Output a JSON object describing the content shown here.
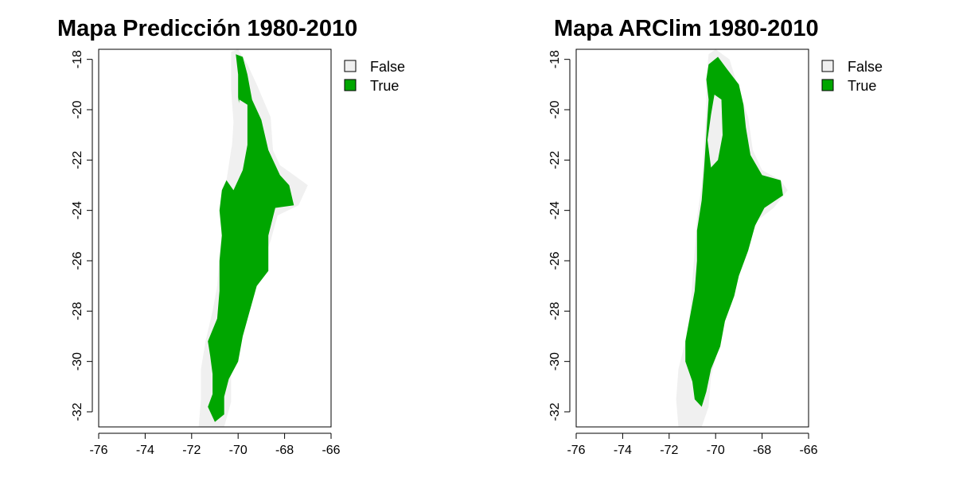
{
  "colors": {
    "false_fill": "#F0F0F0",
    "true_fill": "#00A600",
    "frame": "#000000",
    "background": "#FFFFFF"
  },
  "chart_data": [
    {
      "type": "map",
      "title": "Mapa Predicción 1980-2010",
      "xlim": [
        -76,
        -66
      ],
      "ylim": [
        -32.6,
        -17.6
      ],
      "x_ticks": [
        -76,
        -74,
        -72,
        -70,
        -68,
        -66
      ],
      "y_ticks": [
        -18,
        -20,
        -22,
        -24,
        -26,
        -28,
        -30,
        -32
      ],
      "grid": false,
      "legend_position": "right",
      "legend": [
        {
          "label": "False",
          "color": "#F0F0F0"
        },
        {
          "label": "True",
          "color": "#00A600"
        }
      ],
      "false_region": [
        [
          -70.3,
          -17.7
        ],
        [
          -70.0,
          -17.6
        ],
        [
          -69.6,
          -18.2
        ],
        [
          -69.2,
          -19.0
        ],
        [
          -68.6,
          -20.3
        ],
        [
          -68.5,
          -21.6
        ],
        [
          -68.2,
          -22.2
        ],
        [
          -67.6,
          -22.6
        ],
        [
          -67.0,
          -23.0
        ],
        [
          -67.4,
          -23.8
        ],
        [
          -68.3,
          -24.2
        ],
        [
          -68.6,
          -25.2
        ],
        [
          -69.0,
          -26.2
        ],
        [
          -69.2,
          -27.0
        ],
        [
          -69.6,
          -28.2
        ],
        [
          -69.9,
          -29.3
        ],
        [
          -70.3,
          -30.5
        ],
        [
          -70.3,
          -31.6
        ],
        [
          -70.6,
          -32.6
        ],
        [
          -71.7,
          -32.6
        ],
        [
          -71.6,
          -31.5
        ],
        [
          -71.6,
          -30.3
        ],
        [
          -71.4,
          -29.2
        ],
        [
          -71.1,
          -28.0
        ],
        [
          -70.9,
          -27.0
        ],
        [
          -70.8,
          -25.8
        ],
        [
          -70.7,
          -24.5
        ],
        [
          -70.6,
          -23.3
        ],
        [
          -70.3,
          -22.0
        ],
        [
          -70.2,
          -20.5
        ],
        [
          -70.3,
          -19.2
        ],
        [
          -70.3,
          -18.4
        ]
      ],
      "true_region": [
        [
          -70.1,
          -17.8
        ],
        [
          -69.8,
          -17.9
        ],
        [
          -69.6,
          -18.6
        ],
        [
          -69.4,
          -19.6
        ],
        [
          -69.0,
          -20.4
        ],
        [
          -68.7,
          -21.6
        ],
        [
          -68.2,
          -22.6
        ],
        [
          -67.8,
          -23.0
        ],
        [
          -67.6,
          -23.8
        ],
        [
          -68.4,
          -23.9
        ],
        [
          -68.7,
          -25.0
        ],
        [
          -68.7,
          -26.4
        ],
        [
          -69.2,
          -27.0
        ],
        [
          -69.5,
          -28.0
        ],
        [
          -69.8,
          -29.0
        ],
        [
          -70.0,
          -30.0
        ],
        [
          -70.4,
          -30.7
        ],
        [
          -70.6,
          -31.4
        ],
        [
          -70.6,
          -32.1
        ],
        [
          -71.0,
          -32.4
        ],
        [
          -71.3,
          -31.8
        ],
        [
          -71.1,
          -31.3
        ],
        [
          -71.1,
          -30.5
        ],
        [
          -71.2,
          -29.8
        ],
        [
          -71.3,
          -29.2
        ],
        [
          -70.9,
          -28.3
        ],
        [
          -70.8,
          -27.2
        ],
        [
          -70.8,
          -26.0
        ],
        [
          -70.7,
          -25.0
        ],
        [
          -70.8,
          -24.0
        ],
        [
          -70.7,
          -23.2
        ],
        [
          -70.3,
          -22.4
        ],
        [
          -69.9,
          -21.8
        ],
        [
          -69.8,
          -20.8
        ],
        [
          -70.0,
          -19.5
        ],
        [
          -70.0,
          -18.6
        ]
      ],
      "false_overlay": [
        [
          -69.95,
          -19.6
        ],
        [
          -69.6,
          -19.8
        ],
        [
          -69.6,
          -21.4
        ],
        [
          -69.8,
          -22.4
        ],
        [
          -70.2,
          -23.2
        ],
        [
          -70.5,
          -22.8
        ],
        [
          -70.3,
          -21.6
        ],
        [
          -70.1,
          -20.6
        ]
      ]
    },
    {
      "type": "map",
      "title": "Mapa ARClim 1980-2010",
      "xlim": [
        -76,
        -66
      ],
      "ylim": [
        -32.6,
        -17.6
      ],
      "x_ticks": [
        -76,
        -74,
        -72,
        -70,
        -68,
        -66
      ],
      "y_ticks": [
        -18,
        -20,
        -22,
        -24,
        -26,
        -28,
        -30,
        -32
      ],
      "grid": false,
      "legend_position": "right",
      "legend": [
        {
          "label": "False",
          "color": "#F0F0F0"
        },
        {
          "label": "True",
          "color": "#00A600"
        }
      ],
      "false_region": [
        [
          -70.3,
          -17.8
        ],
        [
          -70.0,
          -17.6
        ],
        [
          -69.4,
          -18.0
        ],
        [
          -69.0,
          -19.2
        ],
        [
          -68.6,
          -20.3
        ],
        [
          -68.4,
          -21.6
        ],
        [
          -68.0,
          -22.4
        ],
        [
          -67.2,
          -22.8
        ],
        [
          -66.9,
          -23.2
        ],
        [
          -67.5,
          -23.9
        ],
        [
          -68.2,
          -24.4
        ],
        [
          -68.6,
          -25.4
        ],
        [
          -69.0,
          -26.4
        ],
        [
          -69.2,
          -27.2
        ],
        [
          -69.6,
          -28.4
        ],
        [
          -69.9,
          -29.5
        ],
        [
          -70.2,
          -30.6
        ],
        [
          -70.3,
          -31.8
        ],
        [
          -70.6,
          -32.6
        ],
        [
          -71.6,
          -32.6
        ],
        [
          -71.7,
          -31.5
        ],
        [
          -71.6,
          -30.3
        ],
        [
          -71.3,
          -29.2
        ],
        [
          -71.1,
          -28.0
        ],
        [
          -71.0,
          -26.8
        ],
        [
          -70.9,
          -25.6
        ],
        [
          -70.8,
          -24.3
        ],
        [
          -70.6,
          -23.0
        ],
        [
          -70.5,
          -21.5
        ],
        [
          -70.4,
          -20.0
        ],
        [
          -70.4,
          -18.8
        ]
      ],
      "true_region": [
        [
          -70.3,
          -18.2
        ],
        [
          -69.9,
          -17.9
        ],
        [
          -69.5,
          -18.4
        ],
        [
          -69.0,
          -19.0
        ],
        [
          -68.8,
          -19.8
        ],
        [
          -68.7,
          -20.7
        ],
        [
          -68.5,
          -21.8
        ],
        [
          -68.0,
          -22.6
        ],
        [
          -67.2,
          -22.8
        ],
        [
          -67.1,
          -23.4
        ],
        [
          -67.9,
          -23.9
        ],
        [
          -68.3,
          -24.6
        ],
        [
          -68.6,
          -25.6
        ],
        [
          -69.0,
          -26.6
        ],
        [
          -69.2,
          -27.4
        ],
        [
          -69.6,
          -28.4
        ],
        [
          -69.8,
          -29.4
        ],
        [
          -70.2,
          -30.3
        ],
        [
          -70.4,
          -31.2
        ],
        [
          -70.6,
          -31.8
        ],
        [
          -70.9,
          -31.5
        ],
        [
          -71.0,
          -30.8
        ],
        [
          -71.3,
          -30.0
        ],
        [
          -71.3,
          -29.2
        ],
        [
          -71.1,
          -28.2
        ],
        [
          -70.9,
          -27.2
        ],
        [
          -70.8,
          -26.0
        ],
        [
          -70.8,
          -24.8
        ],
        [
          -70.6,
          -23.6
        ],
        [
          -70.5,
          -22.4
        ],
        [
          -70.4,
          -21.0
        ],
        [
          -70.3,
          -19.6
        ],
        [
          -70.4,
          -18.8
        ]
      ],
      "false_overlay": [
        [
          -70.05,
          -19.4
        ],
        [
          -69.75,
          -19.6
        ],
        [
          -69.7,
          -21.0
        ],
        [
          -69.9,
          -22.0
        ],
        [
          -70.2,
          -22.3
        ],
        [
          -70.35,
          -21.2
        ],
        [
          -70.2,
          -20.2
        ]
      ]
    }
  ]
}
